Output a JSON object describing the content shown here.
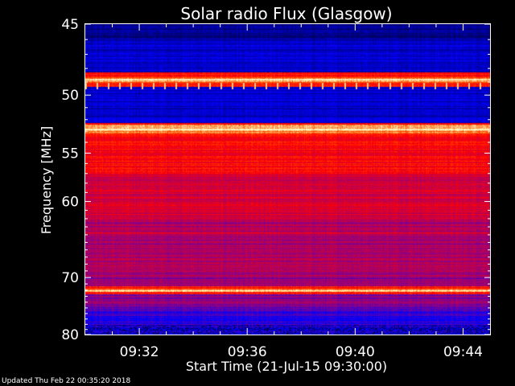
{
  "chart_data": {
    "type": "heatmap",
    "title": "Solar radio Flux (Glasgow)",
    "xlabel": "Start Time (21-Jul-15 09:30:00)",
    "ylabel": "Frequency [MHz]",
    "x_ticks": [
      "09:32",
      "09:36",
      "09:40",
      "09:44"
    ],
    "x_tick_minutes": [
      2,
      6,
      10,
      14
    ],
    "xlim_minutes": [
      0,
      15
    ],
    "y_ticks": [
      45,
      50,
      55,
      60,
      70,
      80
    ],
    "ylim": [
      45,
      80
    ],
    "y_scale": "reciprocal",
    "colormap": "blue-red-yellow",
    "colors": {
      "low": "#0000ff",
      "mid": "#cc0000",
      "high": "#ffffcc",
      "background": "#000000",
      "text": "#ffffff"
    },
    "bright_bands_mhz": [
      48.8,
      52.8,
      72.0
    ]
  },
  "footer": "Updated Thu Feb 22 00:35:20 2018"
}
